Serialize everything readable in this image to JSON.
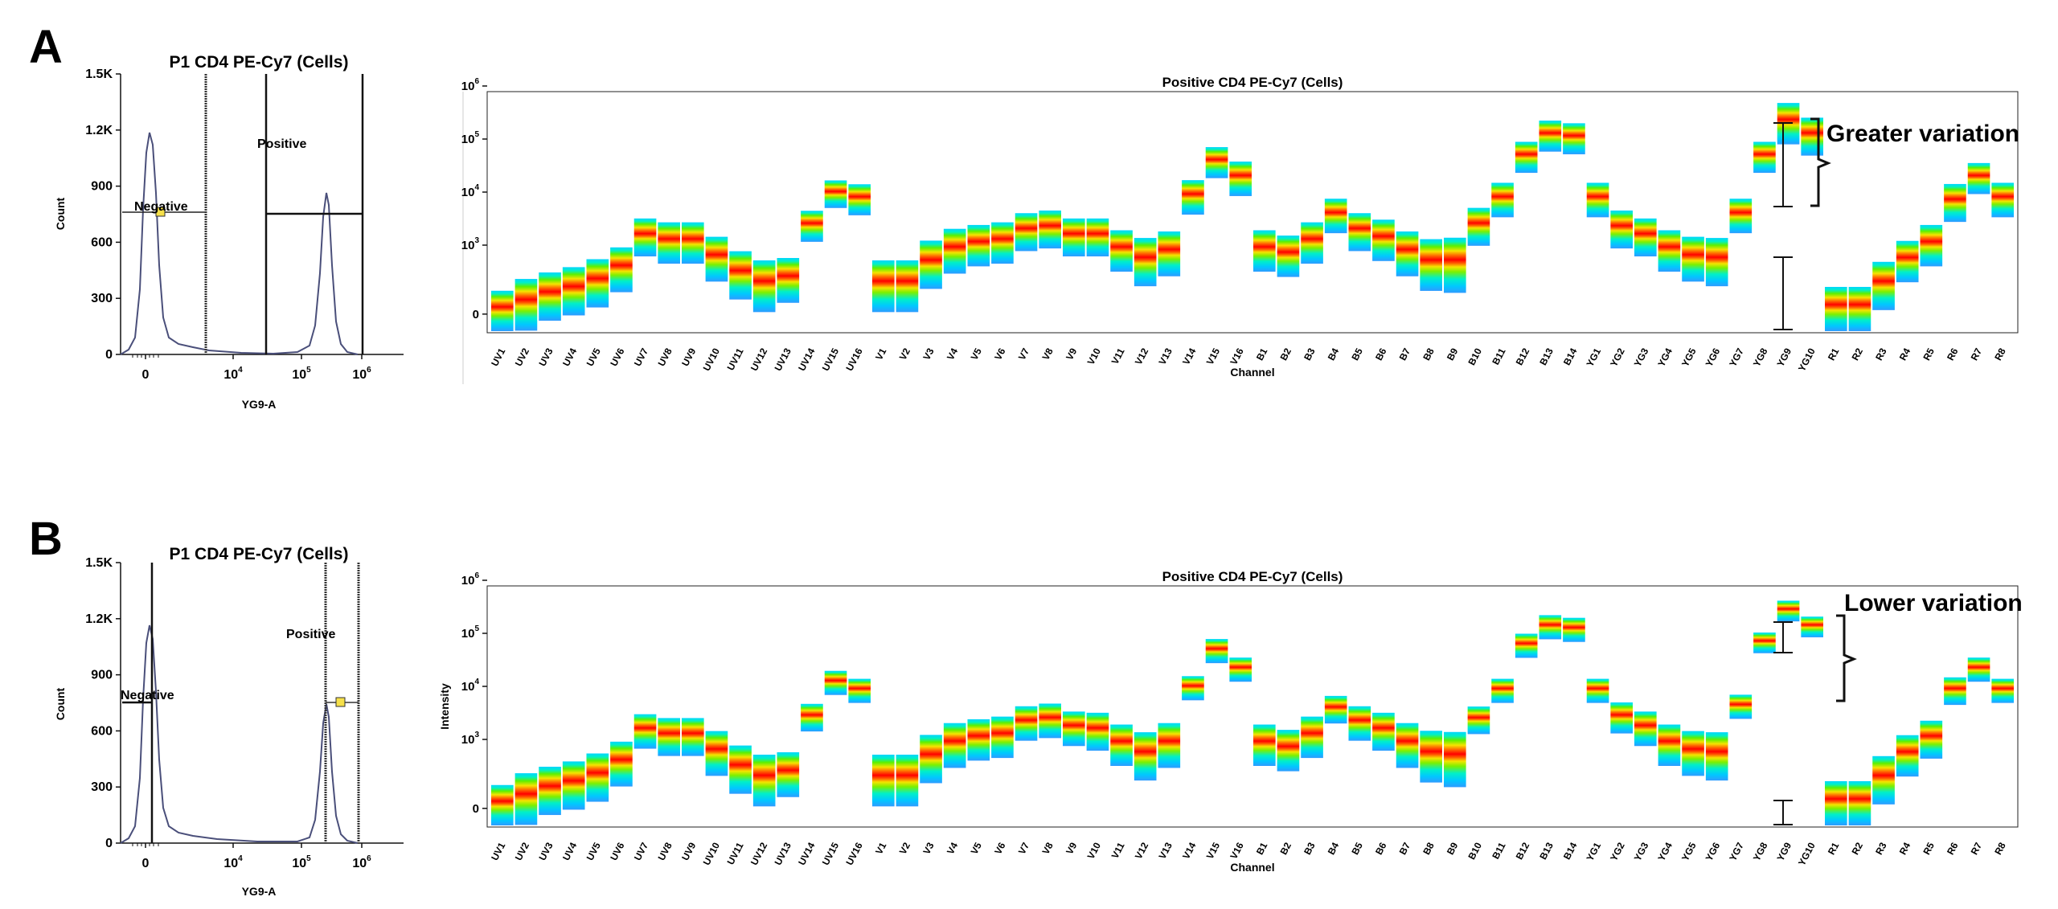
{
  "panels": [
    {
      "label": "A",
      "histogram": {
        "title": "P1 CD4 PE-Cy7 (Cells)",
        "xlabel": "YG9-A",
        "ylabel": "Count",
        "y_ticks": [
          "0",
          "300",
          "600",
          "900",
          "1.2K",
          "1.5K"
        ],
        "y_tick_values": [
          0,
          300,
          600,
          900,
          1200,
          1500
        ],
        "x_ticks": [
          {
            "base": "0",
            "exp": ""
          },
          {
            "base": "10",
            "exp": "4"
          },
          {
            "base": "10",
            "exp": "5"
          },
          {
            "base": "10",
            "exp": "6"
          }
        ],
        "gate_negative": "Negative",
        "gate_positive": "Positive"
      },
      "spectrum": {
        "title": "Positive CD4 PE-Cy7 (Cells)",
        "xlabel": "Channel",
        "ylabel": "",
        "y_ticks": [
          {
            "base": "0",
            "exp": ""
          },
          {
            "base": "10",
            "exp": "3"
          },
          {
            "base": "10",
            "exp": "4"
          },
          {
            "base": "10",
            "exp": "5"
          },
          {
            "base": "10",
            "exp": "6"
          }
        ],
        "annotation": "Greater variation"
      }
    },
    {
      "label": "B",
      "histogram": {
        "title": "P1 CD4 PE-Cy7 (Cells)",
        "xlabel": "YG9-A",
        "ylabel": "Count",
        "y_ticks": [
          "0",
          "300",
          "600",
          "900",
          "1.2K",
          "1.5K"
        ],
        "y_tick_values": [
          0,
          300,
          600,
          900,
          1200,
          1500
        ],
        "x_ticks": [
          {
            "base": "0",
            "exp": ""
          },
          {
            "base": "10",
            "exp": "4"
          },
          {
            "base": "10",
            "exp": "5"
          },
          {
            "base": "10",
            "exp": "6"
          }
        ],
        "gate_negative": "Negative",
        "gate_positive": "Positive"
      },
      "spectrum": {
        "title": "Positive CD4 PE-Cy7 (Cells)",
        "xlabel": "Channel",
        "ylabel": "Intensity",
        "y_ticks": [
          {
            "base": "0",
            "exp": ""
          },
          {
            "base": "10",
            "exp": "3"
          },
          {
            "base": "10",
            "exp": "4"
          },
          {
            "base": "10",
            "exp": "5"
          },
          {
            "base": "10",
            "exp": "6"
          }
        ],
        "annotation": "Lower variation"
      }
    }
  ],
  "chart_data": [
    {
      "type": "line",
      "panel": "A",
      "title": "P1 CD4 PE-Cy7 (Cells)",
      "xlabel": "YG9-A",
      "ylabel": "Count",
      "ylim": [
        0,
        1500
      ],
      "xscale": "biexponential",
      "peaks": [
        {
          "x": "~0",
          "count": 1200
        },
        {
          "x": "~2.5e5",
          "count": 860
        }
      ],
      "gates": [
        "Negative",
        "Positive"
      ]
    },
    {
      "type": "heatmap",
      "panel": "A",
      "title": "Positive CD4 PE-Cy7 (Cells)",
      "xlabel": "Channel",
      "ylabel": "",
      "yscale": "log",
      "categories": [
        "UV1",
        "UV2",
        "UV3",
        "UV4",
        "UV5",
        "UV6",
        "UV7",
        "UV8",
        "UV9",
        "UV10",
        "UV11",
        "UV12",
        "UV13",
        "UV14",
        "UV15",
        "UV16",
        "V1",
        "V2",
        "V3",
        "V4",
        "V5",
        "V6",
        "V7",
        "V8",
        "V9",
        "V10",
        "V11",
        "V12",
        "V13",
        "V14",
        "V15",
        "V16",
        "B1",
        "B2",
        "B3",
        "B4",
        "B5",
        "B6",
        "B7",
        "B8",
        "B9",
        "B10",
        "B11",
        "B12",
        "B13",
        "B14",
        "YG1",
        "YG2",
        "YG3",
        "YG4",
        "YG5",
        "YG6",
        "YG7",
        "YG8",
        "YG9",
        "YG10",
        "R1",
        "R2",
        "R3",
        "R4",
        "R5",
        "R6",
        "R7",
        "R8"
      ],
      "median_log10": [
        1.7,
        1.95,
        2.1,
        2.2,
        2.35,
        2.6,
        3.2,
        3.1,
        3.1,
        2.8,
        2.5,
        2.3,
        2.4,
        3.4,
        4.0,
        3.9,
        2.3,
        2.3,
        2.7,
        2.95,
        3.05,
        3.1,
        3.3,
        3.35,
        3.2,
        3.2,
        2.95,
        2.75,
        2.9,
        3.95,
        4.6,
        4.3,
        2.95,
        2.85,
        3.1,
        3.6,
        3.3,
        3.15,
        2.9,
        2.7,
        2.7,
        3.4,
        3.9,
        4.7,
        5.1,
        5.05,
        3.9,
        3.35,
        3.2,
        2.95,
        2.8,
        2.75,
        3.6,
        4.7,
        5.35,
        5.1,
        1.8,
        1.8,
        2.3,
        2.75,
        3.05,
        3.85,
        4.3,
        3.9
      ],
      "spread_log10": [
        0.8,
        0.75,
        0.7,
        0.7,
        0.7,
        0.65,
        0.55,
        0.6,
        0.6,
        0.65,
        0.7,
        0.75,
        0.65,
        0.45,
        0.4,
        0.45,
        0.75,
        0.75,
        0.7,
        0.65,
        0.6,
        0.6,
        0.55,
        0.55,
        0.55,
        0.55,
        0.6,
        0.7,
        0.65,
        0.5,
        0.45,
        0.5,
        0.6,
        0.6,
        0.6,
        0.5,
        0.55,
        0.6,
        0.65,
        0.75,
        0.8,
        0.55,
        0.5,
        0.45,
        0.45,
        0.45,
        0.5,
        0.55,
        0.55,
        0.6,
        0.65,
        0.7,
        0.5,
        0.45,
        0.6,
        0.55,
        0.75,
        0.75,
        0.7,
        0.6,
        0.6,
        0.55,
        0.45,
        0.5
      ],
      "error_bar": {
        "channel": "YG9",
        "range": [
          3.5,
          6.0
        ]
      },
      "annotation": "Greater variation"
    },
    {
      "type": "line",
      "panel": "B",
      "title": "P1 CD4 PE-Cy7 (Cells)",
      "xlabel": "YG9-A",
      "ylabel": "Count",
      "ylim": [
        0,
        1500
      ],
      "xscale": "biexponential",
      "peaks": [
        {
          "x": "~0",
          "count": 1180
        },
        {
          "x": "~2.5e5",
          "count": 860
        }
      ],
      "gates": [
        "Negative",
        "Positive"
      ]
    },
    {
      "type": "heatmap",
      "panel": "B",
      "title": "Positive CD4 PE-Cy7 (Cells)",
      "xlabel": "Channel",
      "ylabel": "Intensity",
      "yscale": "log",
      "categories": [
        "UV1",
        "UV2",
        "UV3",
        "UV4",
        "UV5",
        "UV6",
        "UV7",
        "UV8",
        "UV9",
        "UV10",
        "UV11",
        "UV12",
        "UV13",
        "UV14",
        "UV15",
        "UV16",
        "V1",
        "V2",
        "V3",
        "V4",
        "V5",
        "V6",
        "V7",
        "V8",
        "V9",
        "V10",
        "V11",
        "V12",
        "V13",
        "V14",
        "V15",
        "V16",
        "B1",
        "B2",
        "B3",
        "B4",
        "B5",
        "B6",
        "B7",
        "B8",
        "B9",
        "B10",
        "B11",
        "B12",
        "B13",
        "B14",
        "YG1",
        "YG2",
        "YG3",
        "YG4",
        "YG5",
        "YG6",
        "YG7",
        "YG8",
        "YG9",
        "YG10",
        "R1",
        "R2",
        "R3",
        "R4",
        "R5",
        "R6",
        "R7",
        "R8"
      ],
      "median_log10": [
        1.7,
        1.95,
        2.1,
        2.2,
        2.35,
        2.6,
        3.2,
        3.1,
        3.1,
        2.8,
        2.5,
        2.3,
        2.4,
        3.45,
        4.1,
        3.95,
        2.3,
        2.3,
        2.7,
        2.95,
        3.05,
        3.1,
        3.35,
        3.4,
        3.25,
        3.2,
        2.95,
        2.75,
        2.95,
        4.0,
        4.7,
        4.35,
        2.95,
        2.85,
        3.1,
        3.6,
        3.35,
        3.2,
        2.95,
        2.75,
        2.7,
        3.4,
        3.95,
        4.8,
        5.15,
        5.1,
        3.95,
        3.45,
        3.25,
        2.95,
        2.8,
        2.75,
        3.65,
        4.85,
        5.45,
        5.15,
        1.8,
        1.8,
        2.3,
        2.75,
        3.05,
        3.95,
        4.35,
        3.95
      ],
      "spread_log10": [
        0.8,
        0.75,
        0.7,
        0.7,
        0.7,
        0.65,
        0.5,
        0.55,
        0.55,
        0.65,
        0.7,
        0.75,
        0.65,
        0.4,
        0.35,
        0.35,
        0.75,
        0.75,
        0.7,
        0.65,
        0.6,
        0.6,
        0.5,
        0.5,
        0.5,
        0.55,
        0.6,
        0.7,
        0.65,
        0.35,
        0.35,
        0.35,
        0.6,
        0.6,
        0.6,
        0.4,
        0.5,
        0.55,
        0.65,
        0.75,
        0.8,
        0.4,
        0.35,
        0.35,
        0.35,
        0.35,
        0.35,
        0.45,
        0.5,
        0.6,
        0.65,
        0.7,
        0.35,
        0.3,
        0.3,
        0.3,
        0.75,
        0.75,
        0.7,
        0.6,
        0.55,
        0.4,
        0.35,
        0.35
      ],
      "error_bar": {
        "channel": "YG9",
        "range": [
          5.0,
          6.0
        ]
      },
      "annotation": "Lower variation"
    }
  ]
}
